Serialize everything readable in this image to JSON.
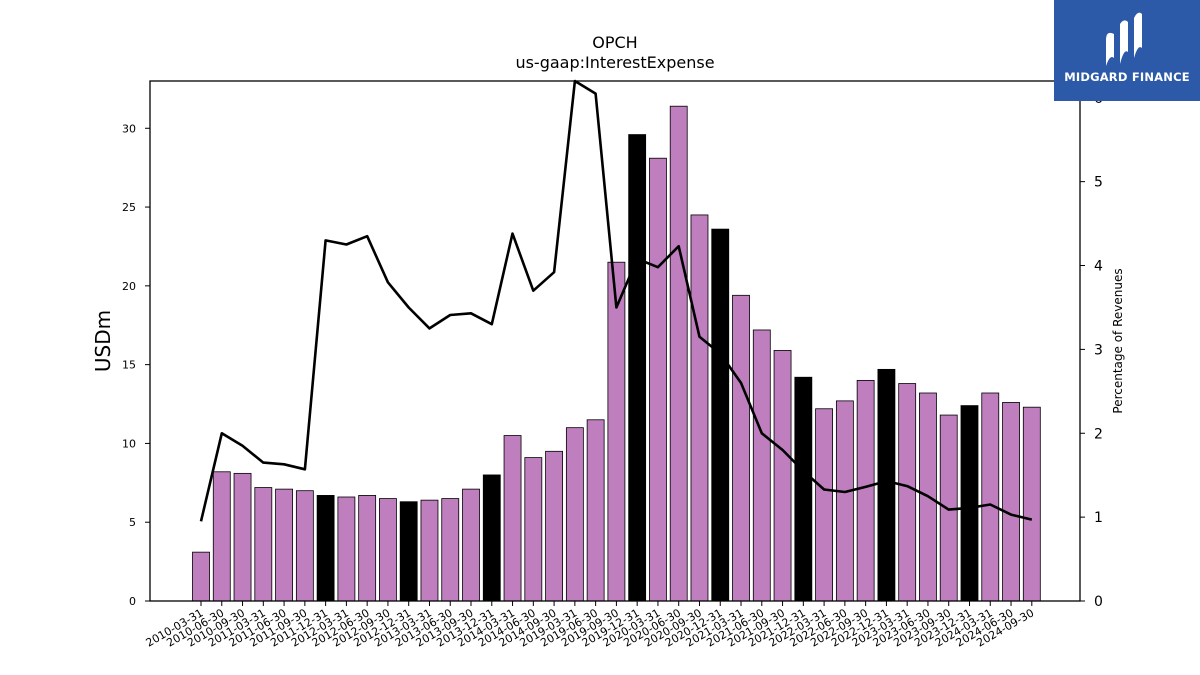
{
  "brand": {
    "name": "MIDGARD FINANCE",
    "icon": "midgard-logo-icon",
    "bg_color": "#2c5aa8"
  },
  "chart_data": {
    "type": "bar",
    "title": "OPCH",
    "subtitle": "us-gaap:InterestExpense",
    "ylabel": "USDm",
    "y2label": "Percentage of Revenues",
    "ylim": [
      0,
      33
    ],
    "y2lim": [
      0,
      6.2
    ],
    "yticks": [
      0,
      5,
      10,
      15,
      20,
      25,
      30
    ],
    "y2ticks": [
      0,
      1,
      2,
      3,
      4,
      5,
      6
    ],
    "grid": false,
    "bar_color": "#bf7fbf",
    "highlight_color": "#000000",
    "line_color": "#000000",
    "categories": [
      "2010-03-31",
      "2010-06-30",
      "2010-09-30",
      "2011-03-31",
      "2011-06-30",
      "2011-09-30",
      "2011-12-31",
      "2012-03-31",
      "2012-06-30",
      "2012-09-30",
      "2012-12-31",
      "2013-03-31",
      "2013-06-30",
      "2013-09-30",
      "2013-12-31",
      "2014-03-31",
      "2014-06-30",
      "2014-09-30",
      "2019-03-31",
      "2019-06-30",
      "2019-09-30",
      "2019-12-31",
      "2020-03-31",
      "2020-06-30",
      "2020-09-30",
      "2020-12-31",
      "2021-03-31",
      "2021-06-30",
      "2021-09-30",
      "2021-12-31",
      "2022-03-31",
      "2022-06-30",
      "2022-09-30",
      "2022-12-31",
      "2023-03-31",
      "2023-06-30",
      "2023-09-30",
      "2023-12-31",
      "2024-03-31",
      "2024-06-30",
      "2024-09-30"
    ],
    "series": [
      {
        "values": [
          3.1,
          8.2,
          8.1,
          7.2,
          7.1,
          7.0,
          6.7,
          6.6,
          6.7,
          6.5,
          6.3,
          6.4,
          6.5,
          7.1,
          8.0,
          10.5,
          9.1,
          9.5,
          11.0,
          11.5,
          21.5,
          29.6,
          28.1,
          31.4,
          24.5,
          23.6,
          19.4,
          17.2,
          15.9,
          14.2,
          12.2,
          12.7,
          14.0,
          14.7,
          13.8,
          13.2,
          11.8,
          12.4,
          13.2,
          12.6,
          12.3
        ],
        "highlight": [
          false,
          false,
          false,
          false,
          false,
          false,
          true,
          false,
          false,
          false,
          true,
          false,
          false,
          false,
          true,
          false,
          false,
          false,
          false,
          false,
          false,
          true,
          false,
          false,
          false,
          true,
          false,
          false,
          false,
          true,
          false,
          false,
          false,
          true,
          false,
          false,
          false,
          true,
          false,
          false,
          false
        ]
      },
      {
        "axis": "right",
        "type": "line",
        "values": [
          0.95,
          2.0,
          1.85,
          1.65,
          1.63,
          1.57,
          4.3,
          4.25,
          4.35,
          3.8,
          3.5,
          3.25,
          3.41,
          3.43,
          3.3,
          4.38,
          3.7,
          3.92,
          6.2,
          6.05,
          3.5,
          4.08,
          3.98,
          4.23,
          3.15,
          2.95,
          2.6,
          2.0,
          1.8,
          1.55,
          1.33,
          1.3,
          1.36,
          1.43,
          1.37,
          1.25,
          1.09,
          1.11,
          1.15,
          1.03,
          0.97
        ]
      }
    ]
  }
}
